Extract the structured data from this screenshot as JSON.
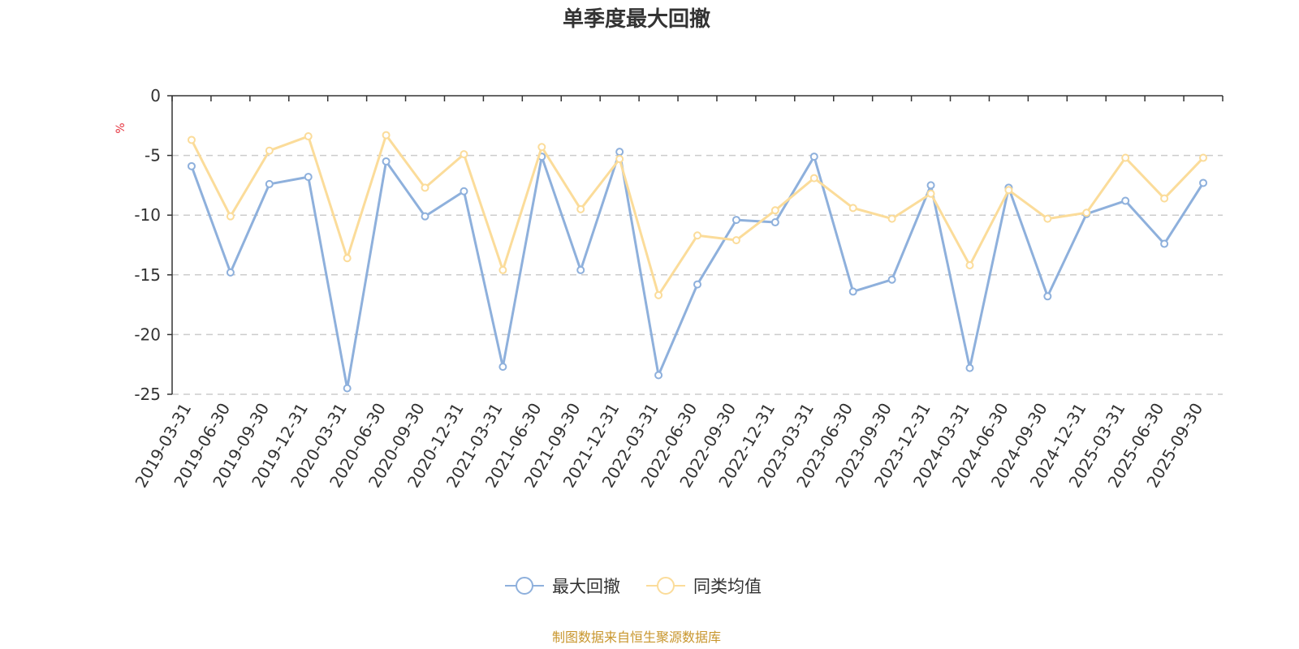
{
  "chart_data": {
    "type": "line",
    "title": "单季度最大回撤",
    "ylabel": "%",
    "ylim": [
      -25,
      0
    ],
    "yticks": [
      0,
      -5,
      -10,
      -15,
      -20,
      -25
    ],
    "grid": true,
    "legend_position": "bottom",
    "categories": [
      "2019-03-31",
      "2019-06-30",
      "2019-09-30",
      "2019-12-31",
      "2020-03-31",
      "2020-06-30",
      "2020-09-30",
      "2020-12-31",
      "2021-03-31",
      "2021-06-30",
      "2021-09-30",
      "2021-12-31",
      "2022-03-31",
      "2022-06-30",
      "2022-09-30",
      "2022-12-31",
      "2023-03-31",
      "2023-06-30",
      "2023-09-30",
      "2023-12-31",
      "2024-03-31",
      "2024-06-30",
      "2024-09-30",
      "2024-12-31",
      "2025-03-31",
      "2025-06-30",
      "2025-09-30"
    ],
    "series": [
      {
        "name": "最大回撤",
        "color": "#8eb0dc",
        "values": [
          -5.9,
          -14.8,
          -7.4,
          -6.8,
          -24.5,
          -5.5,
          -10.1,
          -8.0,
          -22.7,
          -5.1,
          -14.6,
          -4.7,
          -23.4,
          -15.8,
          -10.4,
          -10.6,
          -5.1,
          -16.4,
          -15.4,
          -7.5,
          -22.8,
          -7.7,
          -16.8,
          -9.9,
          -8.8,
          -12.4,
          -7.3
        ]
      },
      {
        "name": "同类均值",
        "color": "#fbdc9a",
        "values": [
          -3.7,
          -10.1,
          -4.6,
          -3.4,
          -13.6,
          -3.3,
          -7.7,
          -4.9,
          -14.6,
          -4.3,
          -9.5,
          -5.3,
          -16.7,
          -11.7,
          -12.1,
          -9.6,
          -6.9,
          -9.4,
          -10.3,
          -8.2,
          -14.2,
          -7.9,
          -10.3,
          -9.8,
          -5.2,
          -8.6,
          -5.2
        ]
      }
    ]
  },
  "footer": {
    "source": "制图数据来自恒生聚源数据库"
  }
}
